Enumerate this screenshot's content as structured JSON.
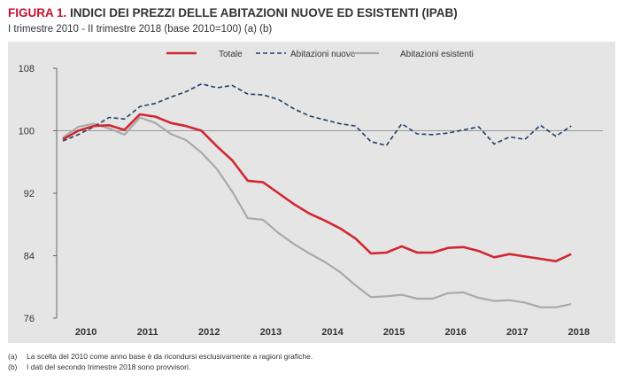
{
  "header": {
    "figure_label": "FIGURA 1.",
    "title": "INDICI DEI PREZZI DELLE ABITAZIONI NUOVE ED ESISTENTI (IPAB)",
    "subtitle": "I trimestre 2010 - II trimestre 2018 (base 2010=100) (a) (b)"
  },
  "notes": [
    {
      "label": "(a)",
      "text": "La scelta del 2010 come anno base è da ricondursi esclusivamente a ragioni grafiche."
    },
    {
      "label": "(b)",
      "text": "I dati del secondo trimestre 2018 sono provvisori."
    }
  ],
  "colors": {
    "background": "#e5e5e5",
    "totale": "#d22630",
    "nuove": "#1f3f66",
    "esistenti": "#a9a9a9",
    "reference_line": "#7f7f7f"
  },
  "chart_data": {
    "type": "line",
    "title": "INDICI DEI PREZZI DELLE ABITAZIONI NUOVE ED ESISTENTI (IPAB)",
    "xlabel": "",
    "ylabel": "",
    "ylim": [
      76,
      108
    ],
    "yticks": [
      "76",
      "84",
      "92",
      "100",
      "108"
    ],
    "x_tick_labels": [
      "2010",
      "2011",
      "2012",
      "2013",
      "2014",
      "2015",
      "2016",
      "2017",
      "2018"
    ],
    "quarters_per_year": 4,
    "reference_line": 100,
    "grid": false,
    "legend_position": "top-center",
    "series": [
      {
        "name": "Totale",
        "style": "solid",
        "values": [
          98.9,
          100.0,
          100.6,
          100.7,
          100.1,
          102.1,
          101.8,
          101.0,
          100.6,
          100.0,
          98.0,
          96.2,
          93.6,
          93.4,
          92.0,
          90.6,
          89.4,
          88.5,
          87.5,
          86.2,
          84.3,
          84.4,
          85.2,
          84.4,
          84.4,
          85.0,
          85.1,
          84.6,
          83.8,
          84.2,
          83.9,
          83.6,
          83.3,
          84.2
        ]
      },
      {
        "name": "Abitazioni nuove",
        "style": "dashed",
        "values": [
          98.7,
          99.5,
          100.5,
          101.7,
          101.5,
          103.1,
          103.5,
          104.3,
          105.0,
          106.0,
          105.5,
          105.8,
          104.7,
          104.6,
          104.0,
          102.8,
          101.9,
          101.4,
          100.9,
          100.6,
          98.6,
          98.1,
          100.9,
          99.6,
          99.5,
          99.7,
          100.1,
          100.5,
          98.3,
          99.2,
          98.9,
          100.7,
          99.3,
          100.6
        ]
      },
      {
        "name": "Abitazioni esistenti",
        "style": "solid",
        "values": [
          99.1,
          100.5,
          100.9,
          100.3,
          99.5,
          101.7,
          101.0,
          99.6,
          98.8,
          97.2,
          95.1,
          92.2,
          88.8,
          88.6,
          86.9,
          85.5,
          84.3,
          83.2,
          81.9,
          80.2,
          78.7,
          78.8,
          79.0,
          78.5,
          78.5,
          79.2,
          79.3,
          78.6,
          78.2,
          78.3,
          78.0,
          77.4,
          77.4,
          77.8
        ]
      }
    ]
  }
}
